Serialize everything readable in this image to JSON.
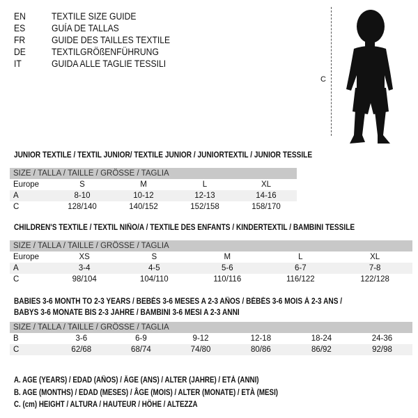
{
  "languages": [
    {
      "code": "EN",
      "label": "TEXTILE SIZE GUIDE"
    },
    {
      "code": "ES",
      "label": "GUÍA DE TALLAS"
    },
    {
      "code": "FR",
      "label": "GUIDE DES TAILLES TEXTILE"
    },
    {
      "code": "DE",
      "label": "TEXTILGRÖßENFÜHRUNG"
    },
    {
      "code": "IT",
      "label": "GUIDA ALLE TAGLIE TESSILI"
    }
  ],
  "figure": {
    "measure_label": "C",
    "icon": "child-silhouette"
  },
  "junior": {
    "title": "JUNIOR TEXTILE / TEXTIL JUNIOR/ TEXTILE JUNIOR / JUNIORTEXTIL / JUNIOR TESSILE",
    "header": "SIZE / TALLA / TAILLE / GRÖSSE / TAGLIA",
    "rows": [
      [
        "Europe",
        "S",
        "M",
        "L",
        "XL"
      ],
      [
        "A",
        "8-10",
        "10-12",
        "12-13",
        "14-16"
      ],
      [
        "C",
        "128/140",
        "140/152",
        "152/158",
        "158/170"
      ]
    ]
  },
  "children": {
    "title": "CHILDREN'S TEXTILE / TEXTIL NIÑO/A / TEXTILE DES ENFANTS / KINDERTEXTIL / BAMBINI TESSILE",
    "header": "SIZE / TALLA / TAILLE / GRÖSSE / TAGLIA",
    "rows": [
      [
        "Europe",
        "XS",
        "S",
        "M",
        "L",
        "XL"
      ],
      [
        "A",
        "3-4",
        "4-5",
        "5-6",
        "6-7",
        "7-8"
      ],
      [
        "C",
        "98/104",
        "104/110",
        "110/116",
        "116/122",
        "122/128"
      ]
    ]
  },
  "babies": {
    "title_line1": "BABIES 3-6 MONTH TO 2-3 YEARS / BEBÉS 3-6 MESES A 2-3 AÑOS / BÉBÉS 3-6 MOIS À 2-3 ANS /",
    "title_line2": "BABYS 3-6 MONATE BIS 2-3 JAHRE / BAMBINI 3-6 MESI A 2-3 ANNI",
    "header": "SIZE / TALLA / TAILLE / GRÖSSE / TAGLIA",
    "rows": [
      [
        "B",
        "3-6",
        "6-9",
        "9-12",
        "12-18",
        "18-24",
        "24-36"
      ],
      [
        "C",
        "62/68",
        "68/74",
        "74/80",
        "80/86",
        "86/92",
        "92/98"
      ]
    ]
  },
  "legend": [
    "A. AGE (YEARS) / EDAD (AÑOS) / ÂGE (ANS) / ALTER (JAHRE) / ETÀ (ANNI)",
    "B. AGE (MONTHS) / EDAD (MESES) / ÂGE (MOIS) / ALTER (MONATE) / ETÀ (MESI)",
    "C. (cm) HEIGHT / ALTURA / HAUTEUR / HÖHE / ALTEZZA"
  ]
}
